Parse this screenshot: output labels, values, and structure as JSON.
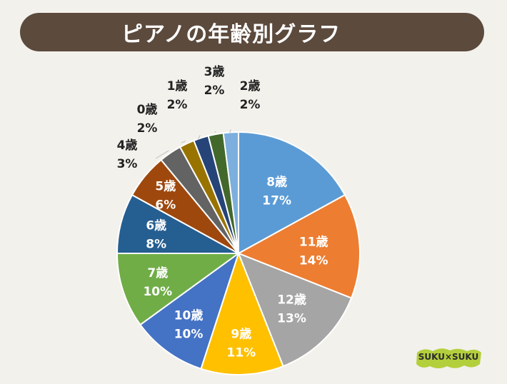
{
  "title": "ピアノの年齢別グラフ",
  "logo_text": "SUKU×SUKU",
  "chart_data": {
    "type": "pie",
    "title": "ピアノの年齢別グラフ",
    "slices": [
      {
        "label": "8歳",
        "value": 17,
        "value_label": "17%",
        "color": "#5b9bd5"
      },
      {
        "label": "11歳",
        "value": 14,
        "value_label": "14%",
        "color": "#ed7d31"
      },
      {
        "label": "12歳",
        "value": 13,
        "value_label": "13%",
        "color": "#a5a5a5"
      },
      {
        "label": "9歳",
        "value": 11,
        "value_label": "11%",
        "color": "#ffc000"
      },
      {
        "label": "10歳",
        "value": 10,
        "value_label": "10%",
        "color": "#4472c4"
      },
      {
        "label": "7歳",
        "value": 10,
        "value_label": "10%",
        "color": "#70ad47"
      },
      {
        "label": "6歳",
        "value": 8,
        "value_label": "8%",
        "color": "#255e91"
      },
      {
        "label": "5歳",
        "value": 6,
        "value_label": "6%",
        "color": "#9e480e"
      },
      {
        "label": "4歳",
        "value": 3,
        "value_label": "3%",
        "color": "#636363"
      },
      {
        "label": "0歳",
        "value": 2,
        "value_label": "2%",
        "color": "#997300"
      },
      {
        "label": "1歳",
        "value": 2,
        "value_label": "2%",
        "color": "#264478"
      },
      {
        "label": "3歳",
        "value": 2,
        "value_label": "2%",
        "color": "#43682b"
      },
      {
        "label": "2歳",
        "value": 2,
        "value_label": "2%",
        "color": "#7cafdd"
      }
    ]
  }
}
